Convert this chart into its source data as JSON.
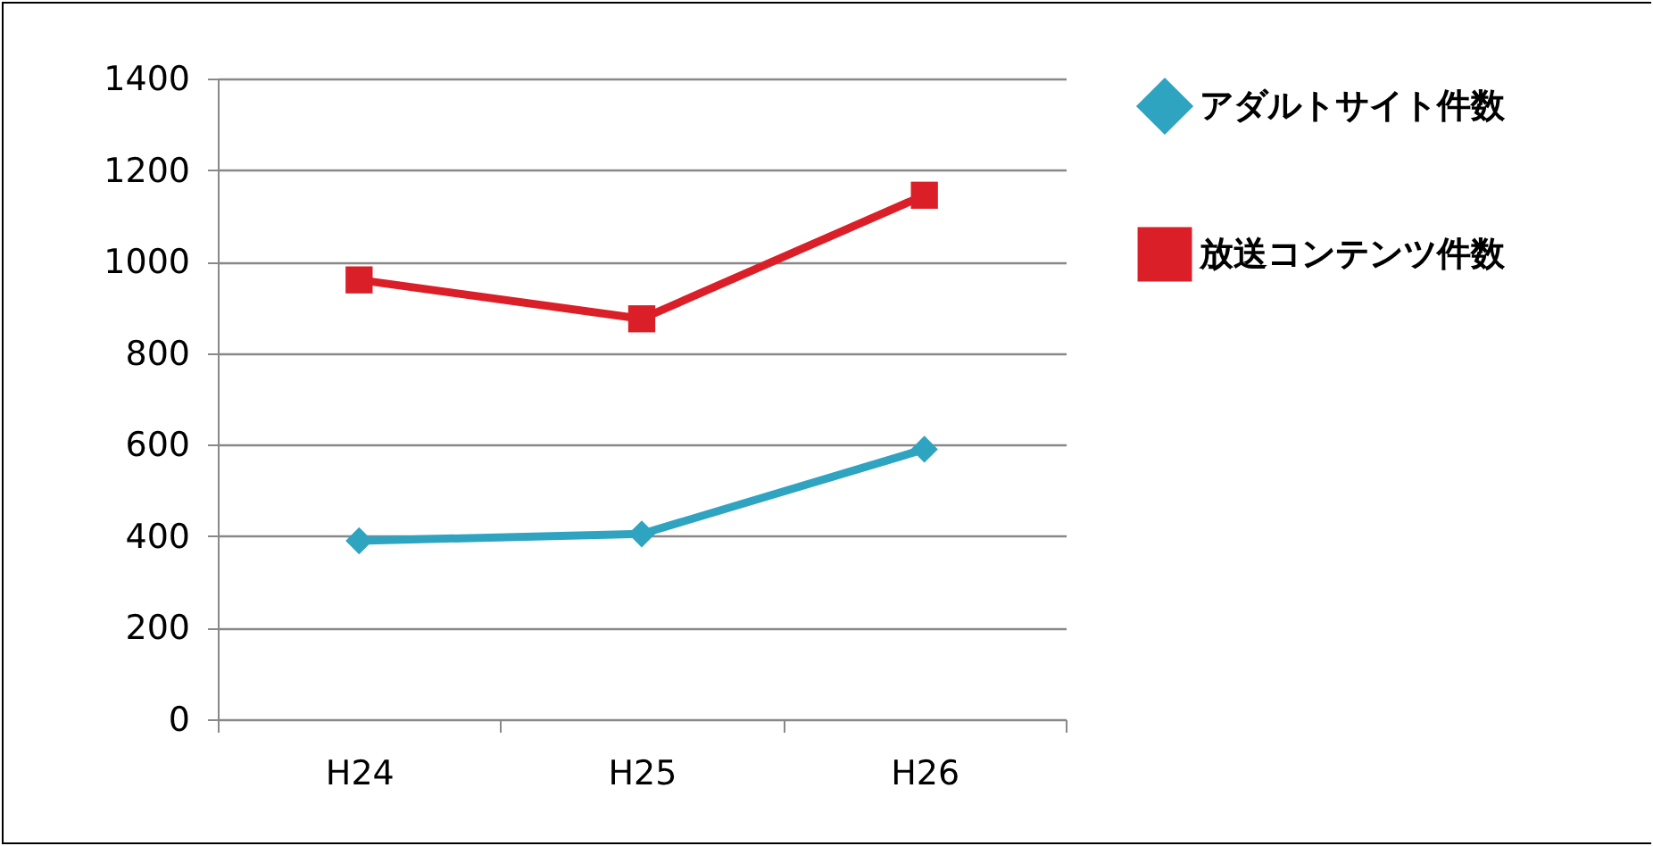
{
  "chart_data": {
    "type": "line",
    "categories": [
      "H24",
      "H25",
      "H26"
    ],
    "series": [
      {
        "name": "アダルトサイト件数",
        "color": "#2fa4c1",
        "marker": "diamond",
        "values": [
          390,
          405,
          590
        ]
      },
      {
        "name": "放送コンテンツ件数",
        "color": "#db1f28",
        "marker": "square",
        "values": [
          960,
          875,
          1145
        ]
      }
    ],
    "ylim": [
      0,
      1400
    ],
    "yticks": [
      0,
      200,
      400,
      600,
      800,
      1000,
      1200,
      1400
    ],
    "grid": "y",
    "legend": "right"
  }
}
